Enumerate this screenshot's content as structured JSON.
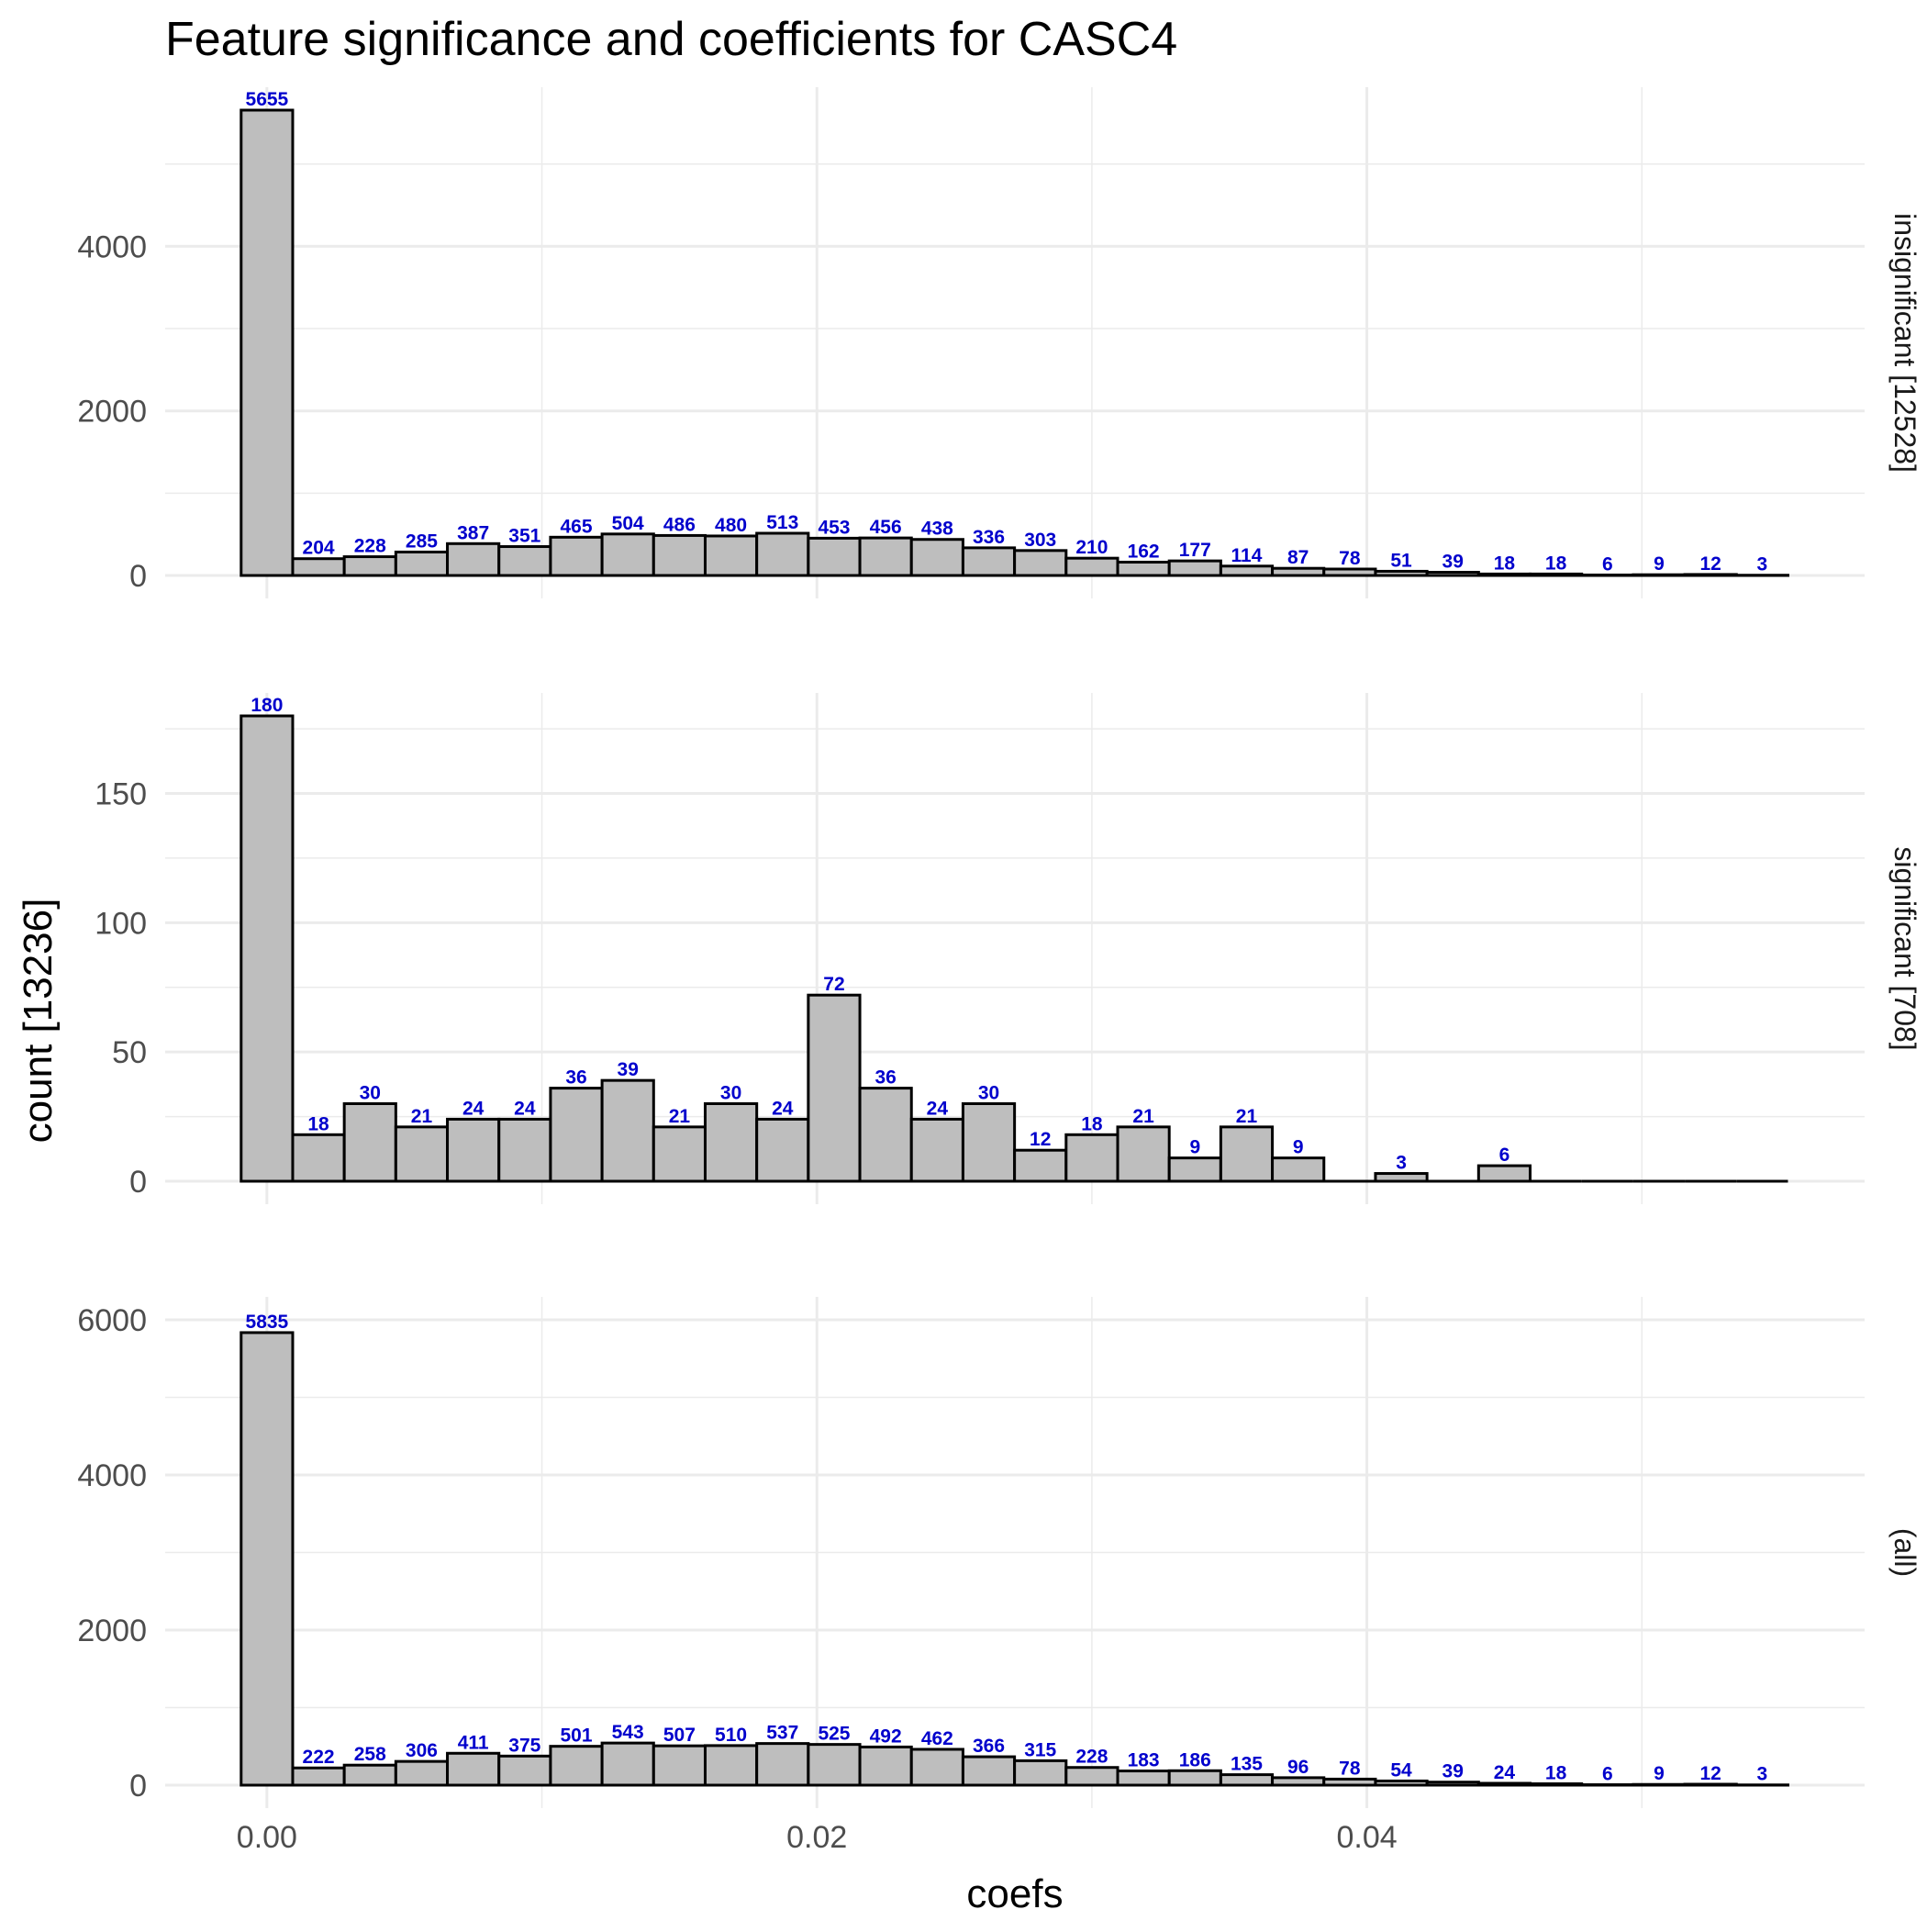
{
  "chart_data": {
    "type": "bar",
    "title": "Feature significance and coefficients for CASC4",
    "xlabel": "coefs",
    "ylabel": "count [13236]",
    "xlim": [
      -0.0037,
      0.0581
    ],
    "x_ticks": [
      {
        "value": 0.0,
        "label": "0.00"
      },
      {
        "value": 0.02,
        "label": "0.02"
      },
      {
        "value": 0.04,
        "label": "0.04"
      }
    ],
    "bins": {
      "first_center": 0.0,
      "width": 0.001875,
      "count": 30
    },
    "grid": true,
    "legend": "none",
    "colors": {
      "bar_fill": "#bebebe",
      "bar_stroke": "#000000",
      "label": "#0000cc",
      "grid": "#ebebeb"
    },
    "panels": [
      {
        "name": "insignificant [12528]",
        "ylim": [
          0,
          5655
        ],
        "y_ticks": [
          {
            "value": 0,
            "label": "0"
          },
          {
            "value": 2000,
            "label": "2000"
          },
          {
            "value": 4000,
            "label": "4000"
          }
        ],
        "values": [
          5655,
          204,
          228,
          285,
          387,
          351,
          465,
          504,
          486,
          480,
          513,
          453,
          456,
          438,
          336,
          303,
          210,
          162,
          177,
          114,
          87,
          78,
          51,
          39,
          18,
          18,
          6,
          9,
          12,
          3
        ],
        "labels": [
          "5655",
          "204",
          "228",
          "285",
          "387",
          "351",
          "465",
          "504",
          "486",
          "480",
          "513",
          "453",
          "456",
          "438",
          "336",
          "303",
          "210",
          "162",
          "177",
          "114",
          "87",
          "78",
          "51",
          "39",
          "18",
          "18",
          "6",
          "9",
          "12",
          "3"
        ]
      },
      {
        "name": "significant [708]",
        "ylim": [
          0,
          180
        ],
        "y_ticks": [
          {
            "value": 0,
            "label": "0"
          },
          {
            "value": 50,
            "label": "50"
          },
          {
            "value": 100,
            "label": "100"
          },
          {
            "value": 150,
            "label": "150"
          }
        ],
        "values": [
          180,
          18,
          30,
          21,
          24,
          24,
          36,
          39,
          21,
          30,
          24,
          72,
          36,
          24,
          30,
          12,
          18,
          21,
          9,
          21,
          9,
          0,
          3,
          0,
          6,
          0,
          0,
          0,
          0,
          0
        ],
        "labels": [
          "180",
          "18",
          "30",
          "21",
          "24",
          "24",
          "36",
          "39",
          "21",
          "30",
          "24",
          "72",
          "36",
          "24",
          "30",
          "12",
          "18",
          "21",
          "9",
          "21",
          "9",
          "",
          "3",
          "",
          "6",
          "",
          "",
          "",
          "",
          ""
        ]
      },
      {
        "name": "(all)",
        "ylim": [
          0,
          6000
        ],
        "y_ticks": [
          {
            "value": 0,
            "label": "0"
          },
          {
            "value": 2000,
            "label": "2000"
          },
          {
            "value": 4000,
            "label": "4000"
          },
          {
            "value": 6000,
            "label": "6000"
          }
        ],
        "values": [
          5835,
          222,
          258,
          306,
          411,
          375,
          501,
          543,
          507,
          510,
          537,
          525,
          492,
          462,
          366,
          315,
          228,
          183,
          186,
          135,
          96,
          78,
          54,
          39,
          24,
          18,
          6,
          9,
          12,
          3
        ],
        "labels": [
          "5835",
          "222",
          "258",
          "306",
          "411",
          "375",
          "501",
          "543",
          "507",
          "510",
          "537",
          "525",
          "492",
          "462",
          "366",
          "315",
          "228",
          "183",
          "186",
          "135",
          "96",
          "78",
          "54",
          "39",
          "24",
          "18",
          "6",
          "9",
          "12",
          "3"
        ]
      }
    ]
  }
}
